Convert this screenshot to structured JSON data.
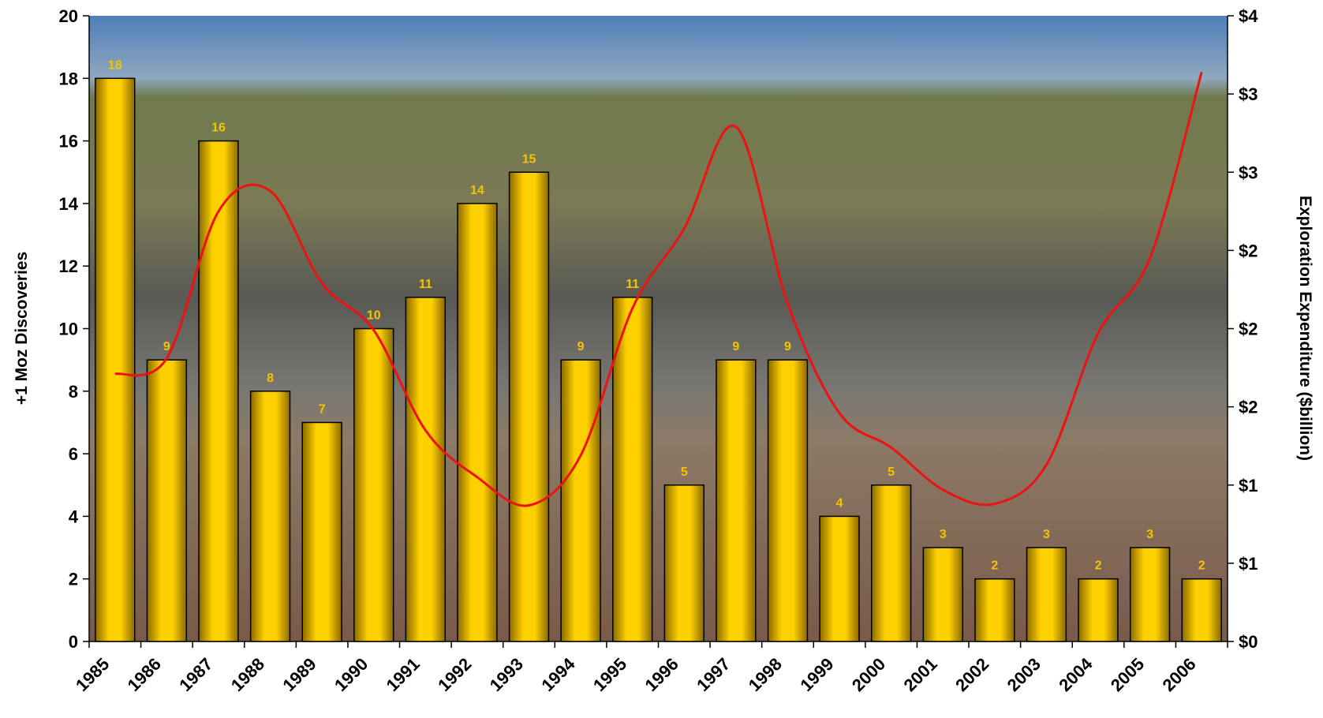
{
  "chart_data": {
    "type": "bar",
    "y_label": "+1 Moz Discoveries",
    "y2_label": "Exploration Expenditure ($billion)",
    "categories": [
      "1985",
      "1986",
      "1987",
      "1988",
      "1989",
      "1990",
      "1991",
      "1992",
      "1993",
      "1994",
      "1995",
      "1996",
      "1997",
      "1998",
      "1999",
      "2000",
      "2001",
      "2002",
      "2003",
      "2004",
      "2005",
      "2006"
    ],
    "series": [
      {
        "type": "bar",
        "color": "#f5c400",
        "values": [
          18,
          9,
          16,
          8,
          7,
          10,
          11,
          14,
          15,
          9,
          11,
          5,
          9,
          9,
          4,
          5,
          3,
          2,
          3,
          2,
          3,
          2
        ]
      },
      {
        "type": "line",
        "axis": "y2",
        "color": "#ee1111",
        "values": [
          1.71,
          1.81,
          2.75,
          2.88,
          2.29,
          1.99,
          1.35,
          1.05,
          0.87,
          1.19,
          2.13,
          2.64,
          3.29,
          2.16,
          1.46,
          1.24,
          0.97,
          0.88,
          1.13,
          1.97,
          2.45,
          3.64
        ]
      }
    ],
    "ylim": [
      0,
      20
    ],
    "yticks": [
      0,
      2,
      4,
      6,
      8,
      10,
      12,
      14,
      16,
      18,
      20
    ],
    "y2lim": [
      0,
      4
    ],
    "y2ticks": [
      {
        "value": 0,
        "label": "$0"
      },
      {
        "value": 0.5,
        "label": "$1"
      },
      {
        "value": 1,
        "label": "$1"
      },
      {
        "value": 1.5,
        "label": "$2"
      },
      {
        "value": 2,
        "label": "$2"
      },
      {
        "value": 2.5,
        "label": "$2"
      },
      {
        "value": 3,
        "label": "$3"
      },
      {
        "value": 3.5,
        "label": "$3"
      },
      {
        "value": 4,
        "label": "$4"
      }
    ]
  }
}
